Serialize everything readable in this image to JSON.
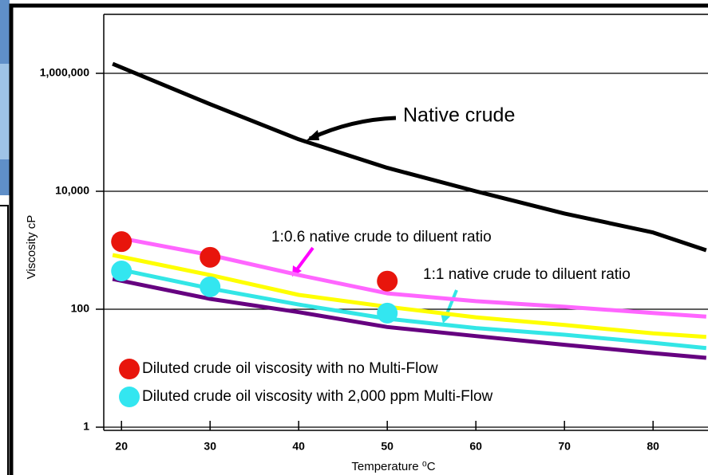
{
  "chart_data": {
    "type": "line",
    "x_label": "Temperature ⁰C",
    "y_label": "Viscosity cP",
    "log_y": true,
    "grid": true,
    "xlim": [
      18,
      86.2
    ],
    "ylim": [
      1,
      10000000
    ],
    "xticks": [
      20,
      30,
      40,
      50,
      60,
      70,
      80
    ],
    "yticks": [
      {
        "value": 1,
        "label": "1"
      },
      {
        "value": 100,
        "label": "100"
      },
      {
        "value": 10000,
        "label": "10,000"
      },
      {
        "value": 1000000,
        "label": "1,000,000"
      }
    ],
    "x": [
      19,
      30,
      40,
      50,
      60,
      70,
      80,
      86
    ],
    "series": [
      {
        "color": "#000000",
        "values": [
          1450000,
          300000,
          76000,
          25000,
          10000,
          4200,
          2000,
          1000
        ]
      },
      {
        "color": "#ff66ff",
        "values": [
          1700,
          830,
          380,
          186,
          137,
          110,
          86,
          75
        ]
      },
      {
        "color": "#ffff00",
        "values": [
          830,
          380,
          175,
          110,
          73,
          54,
          39,
          34
        ]
      },
      {
        "color": "#33e6e6",
        "values": [
          500,
          225,
          120,
          69,
          48,
          37,
          27,
          22
        ]
      },
      {
        "color": "#660080",
        "values": [
          325,
          150,
          89,
          50,
          35,
          25,
          18,
          15
        ]
      }
    ],
    "markers": [
      {
        "name": "Diluted crude oil viscosity with no Multi-Flow",
        "color": "#e8150c",
        "x": [
          20,
          30,
          50
        ],
        "values": [
          1400,
          760,
          300
        ]
      },
      {
        "name": "Diluted crude oil viscosity with 2,000 ppm Multi-Flow",
        "color": "#33e6f0",
        "x": [
          20,
          30,
          50
        ],
        "values": [
          445,
          240,
          86
        ]
      }
    ],
    "annotations": [
      "Native crude",
      "1:0.6 native crude to diluent ratio",
      "1:1 native crude to diluent ratio"
    ]
  }
}
